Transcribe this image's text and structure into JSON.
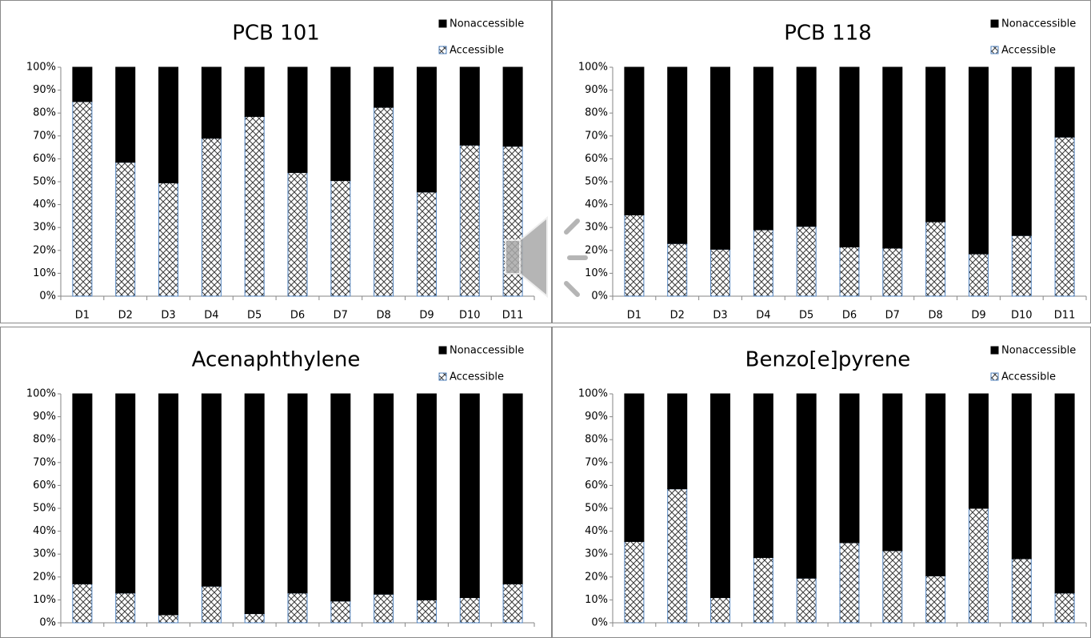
{
  "chart_data": [
    {
      "type": "stacked-bar",
      "title": "PCB 101",
      "categories": [
        "D1",
        "D2",
        "D3",
        "D4",
        "D5",
        "D6",
        "D7",
        "D8",
        "D9",
        "D10",
        "D11"
      ],
      "series": [
        {
          "name": "Accessible",
          "color": "#3a3a3a",
          "hatch": true,
          "values": [
            85,
            58.5,
            49.5,
            69,
            78.5,
            54,
            50.5,
            82.5,
            45.5,
            66,
            65.5
          ]
        },
        {
          "name": "Nonaccessible",
          "color": "#000000",
          "values": [
            15,
            41.5,
            50.5,
            31,
            21.5,
            46,
            49.5,
            17.5,
            54.5,
            34,
            34.5
          ]
        }
      ],
      "ylim": [
        0,
        100
      ],
      "yticks": [
        {
          "value": 0,
          "label": "0%"
        },
        {
          "value": 10,
          "label": "10%"
        },
        {
          "value": 20,
          "label": "20%"
        },
        {
          "value": 30,
          "label": "30%"
        },
        {
          "value": 40,
          "label": "40%"
        },
        {
          "value": 50,
          "label": "50%"
        },
        {
          "value": 60,
          "label": "60%"
        },
        {
          "value": 70,
          "label": "70%"
        },
        {
          "value": 80,
          "label": "80%"
        },
        {
          "value": 90,
          "label": "90%"
        },
        {
          "value": 100,
          "label": "100%"
        }
      ]
    },
    {
      "type": "stacked-bar",
      "title": "PCB 118",
      "categories": [
        "D1",
        "D2",
        "D3",
        "D4",
        "D5",
        "D6",
        "D7",
        "D8",
        "D9",
        "D10",
        "D11"
      ],
      "series": [
        {
          "name": "Accessible",
          "color": "#3a3a3a",
          "hatch": true,
          "values": [
            35.5,
            23,
            20.5,
            29,
            30.5,
            21.5,
            21,
            32.5,
            18.5,
            26.5,
            69.5
          ]
        },
        {
          "name": "Nonaccessible",
          "color": "#000000",
          "values": [
            64.5,
            77,
            79.5,
            71,
            69.5,
            78.5,
            79,
            67.5,
            81.5,
            73.5,
            30.5
          ]
        }
      ],
      "ylim": [
        0,
        100
      ],
      "yticks": [
        {
          "value": 0,
          "label": "0%"
        },
        {
          "value": 10,
          "label": "10%"
        },
        {
          "value": 20,
          "label": "20%"
        },
        {
          "value": 30,
          "label": "30%"
        },
        {
          "value": 40,
          "label": "40%"
        },
        {
          "value": 50,
          "label": "50%"
        },
        {
          "value": 60,
          "label": "60%"
        },
        {
          "value": 70,
          "label": "70%"
        },
        {
          "value": 80,
          "label": "80%"
        },
        {
          "value": 90,
          "label": "90%"
        },
        {
          "value": 100,
          "label": "100%"
        }
      ]
    },
    {
      "type": "stacked-bar",
      "title": "Acenaphthylene",
      "categories": [
        null,
        null,
        null,
        null,
        null,
        null,
        null,
        null,
        null,
        null,
        null
      ],
      "series": [
        {
          "name": "Accessible",
          "color": "#3a3a3a",
          "hatch": true,
          "values": [
            17,
            13,
            3.5,
            16,
            4,
            13,
            9.5,
            12.5,
            10,
            11,
            17
          ]
        },
        {
          "name": "Nonaccessible",
          "color": "#000000",
          "values": [
            83,
            87,
            96.5,
            84,
            96,
            87,
            90.5,
            87.5,
            90,
            89,
            83
          ]
        }
      ],
      "ylim": [
        0,
        100
      ],
      "yticks": [
        {
          "value": 0,
          "label": "0%"
        },
        {
          "value": 10,
          "label": "10%"
        },
        {
          "value": 20,
          "label": "20%"
        },
        {
          "value": 30,
          "label": "30%"
        },
        {
          "value": 40,
          "label": "40%"
        },
        {
          "value": 50,
          "label": "50%"
        },
        {
          "value": 60,
          "label": "60%"
        },
        {
          "value": 70,
          "label": "70%"
        },
        {
          "value": 80,
          "label": "80%"
        },
        {
          "value": 90,
          "label": "90%"
        },
        {
          "value": 100,
          "label": "100%"
        }
      ]
    },
    {
      "type": "stacked-bar",
      "title": "Benzo[e]pyrene",
      "categories": [
        null,
        null,
        null,
        null,
        null,
        null,
        null,
        null,
        null,
        null,
        null
      ],
      "series": [
        {
          "name": "Accessible",
          "color": "#3a3a3a",
          "hatch": true,
          "values": [
            35.5,
            58.5,
            11,
            28.5,
            19.5,
            35,
            31.5,
            20.5,
            50,
            28,
            13
          ]
        },
        {
          "name": "Nonaccessible",
          "color": "#000000",
          "values": [
            64.5,
            41.5,
            89,
            71.5,
            80.5,
            65,
            68.5,
            79.5,
            50,
            72,
            87
          ]
        }
      ],
      "ylim": [
        0,
        100
      ],
      "yticks": [
        {
          "value": 0,
          "label": "0%"
        },
        {
          "value": 10,
          "label": "10%"
        },
        {
          "value": 20,
          "label": "20%"
        },
        {
          "value": 30,
          "label": "30%"
        },
        {
          "value": 40,
          "label": "40%"
        },
        {
          "value": 50,
          "label": "50%"
        },
        {
          "value": 60,
          "label": "60%"
        },
        {
          "value": 70,
          "label": "70%"
        },
        {
          "value": 80,
          "label": "80%"
        },
        {
          "value": 90,
          "label": "90%"
        },
        {
          "value": 100,
          "label": "100%"
        }
      ]
    }
  ]
}
